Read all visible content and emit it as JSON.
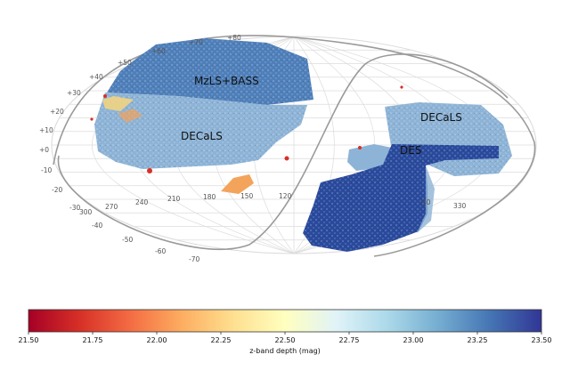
{
  "chart_data": {
    "type": "heatmap",
    "projection": "mollweide",
    "grid": true,
    "dec_labels": [
      "+80",
      "+70",
      "+60",
      "+50",
      "+40",
      "+30",
      "+20",
      "+10",
      "+0",
      "-10",
      "-20",
      "-30",
      "-40",
      "-50",
      "-60",
      "-70"
    ],
    "ra_labels": [
      "300",
      "270",
      "240",
      "210",
      "180",
      "150",
      "120",
      "30",
      "330"
    ],
    "surveys": [
      {
        "name": "MzLS+BASS",
        "color": "#4f7fb9"
      },
      {
        "name": "DECaLS",
        "color": "#8db3d6"
      },
      {
        "name": "DECaLS",
        "color": "#8db3d6"
      },
      {
        "name": "DES",
        "color": "#2a4a9c"
      }
    ],
    "colorbar": {
      "label": "z-band depth (mag)",
      "min": 21.5,
      "max": 23.5,
      "ticks": [
        "21.50",
        "21.75",
        "22.00",
        "22.25",
        "22.50",
        "22.75",
        "23.00",
        "23.25",
        "23.50"
      ],
      "colormap": "RdYlBu",
      "stops": [
        "#a50026",
        "#d73027",
        "#f46d43",
        "#fdae61",
        "#fee090",
        "#ffffbf",
        "#e0f3f8",
        "#abd9e9",
        "#74add1",
        "#4575b4",
        "#313695"
      ]
    }
  }
}
